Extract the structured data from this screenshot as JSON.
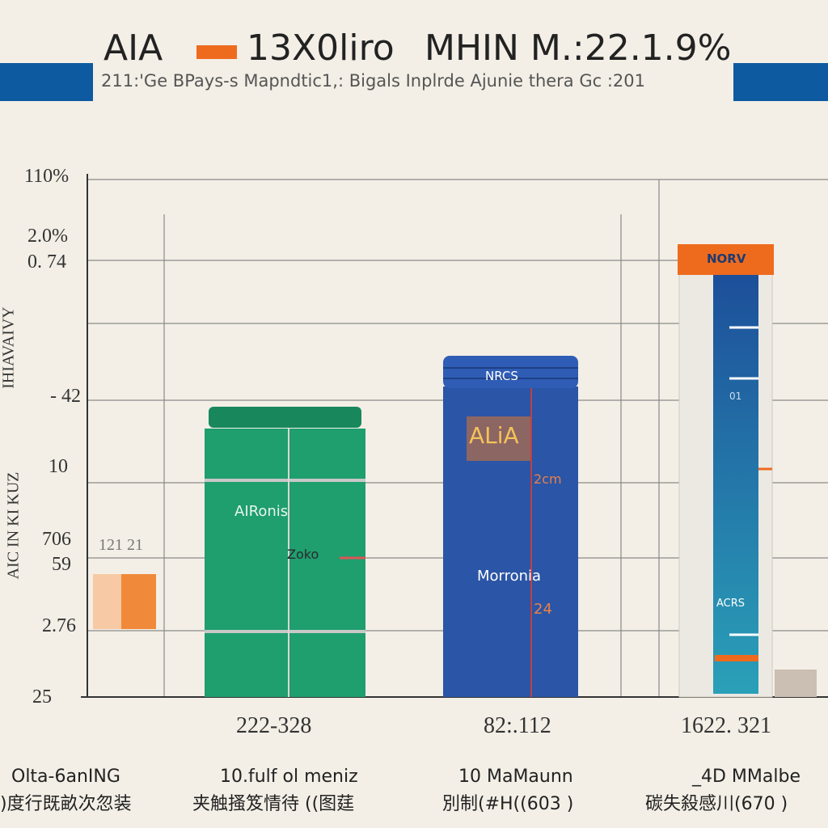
{
  "header": {
    "title_left": "AIA",
    "title_mid": "13X0liro",
    "title_right": "MHIN M.:22.1.9%",
    "subtitle": "211:'Ge BPays-s Mapndtic1,: Bigals Inplrde Ajunie thera Gc :201"
  },
  "axis": {
    "ticks": [
      "110%",
      "2.0%",
      "0. 74",
      "- 42",
      "10",
      "706",
      "59",
      "2.76",
      "25"
    ],
    "title_upper": "IHIAVAIVY",
    "title_lower": "AIC IN KI KUZ",
    "side_note": "121 21"
  },
  "products": [
    {
      "labels": [
        "AIRonis",
        "Zoko"
      ],
      "x_label": "222-328",
      "caption": "10.fulf ol meniz",
      "caption_sub": "夹触搔笈情待 ((图莛"
    },
    {
      "labels": [
        "NRCS",
        "ALiA",
        "2cm",
        "Morronia",
        "24"
      ],
      "x_label": "82:.112",
      "caption": "10 MaMaunn",
      "caption_sub": "別制(#H((603 )"
    },
    {
      "labels": [
        "NORV",
        "01",
        "ACRS"
      ],
      "x_label": "1622. 321",
      "caption": "_4D MMalbe",
      "caption_sub": "碳失殺感川(670 )"
    }
  ],
  "left_caption": "Olta-6anING",
  "left_caption_sub": ")度行既畝次忽装"
}
